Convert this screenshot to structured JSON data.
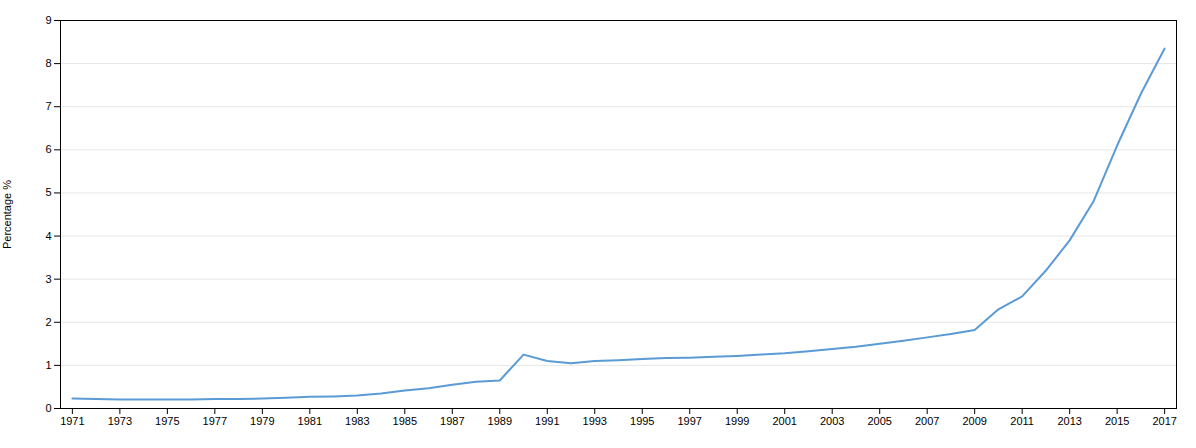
{
  "chart_data": {
    "type": "line",
    "x": [
      1971,
      1972,
      1973,
      1974,
      1975,
      1976,
      1977,
      1978,
      1979,
      1980,
      1981,
      1982,
      1983,
      1984,
      1985,
      1986,
      1987,
      1988,
      1989,
      1990,
      1991,
      1992,
      1993,
      1994,
      1995,
      1996,
      1997,
      1998,
      1999,
      2000,
      2001,
      2002,
      2003,
      2004,
      2005,
      2006,
      2007,
      2008,
      2009,
      2010,
      2011,
      2012,
      2013,
      2014,
      2015,
      2016,
      2017
    ],
    "values": [
      0.23,
      0.22,
      0.21,
      0.21,
      0.21,
      0.21,
      0.22,
      0.22,
      0.23,
      0.25,
      0.27,
      0.28,
      0.3,
      0.35,
      0.42,
      0.47,
      0.55,
      0.62,
      0.65,
      1.25,
      1.1,
      1.05,
      1.1,
      1.12,
      1.15,
      1.17,
      1.18,
      1.2,
      1.22,
      1.25,
      1.28,
      1.33,
      1.38,
      1.43,
      1.5,
      1.57,
      1.65,
      1.73,
      1.82,
      2.3,
      2.6,
      3.2,
      3.9,
      4.8,
      6.1,
      7.3,
      8.35
    ],
    "color": "#5B9BD5",
    "ylabel": "Percentage %",
    "xlim": [
      1970.5,
      2017.5
    ],
    "xticks": [
      1971,
      1973,
      1975,
      1977,
      1979,
      1981,
      1983,
      1985,
      1987,
      1989,
      1991,
      1993,
      1995,
      1997,
      1999,
      2001,
      2003,
      2005,
      2007,
      2009,
      2011,
      2013,
      2015,
      2017
    ],
    "ylim": [
      0,
      9
    ],
    "yticks": [
      0,
      1,
      2,
      3,
      4,
      5,
      6,
      7,
      8,
      9
    ],
    "grid": true
  }
}
